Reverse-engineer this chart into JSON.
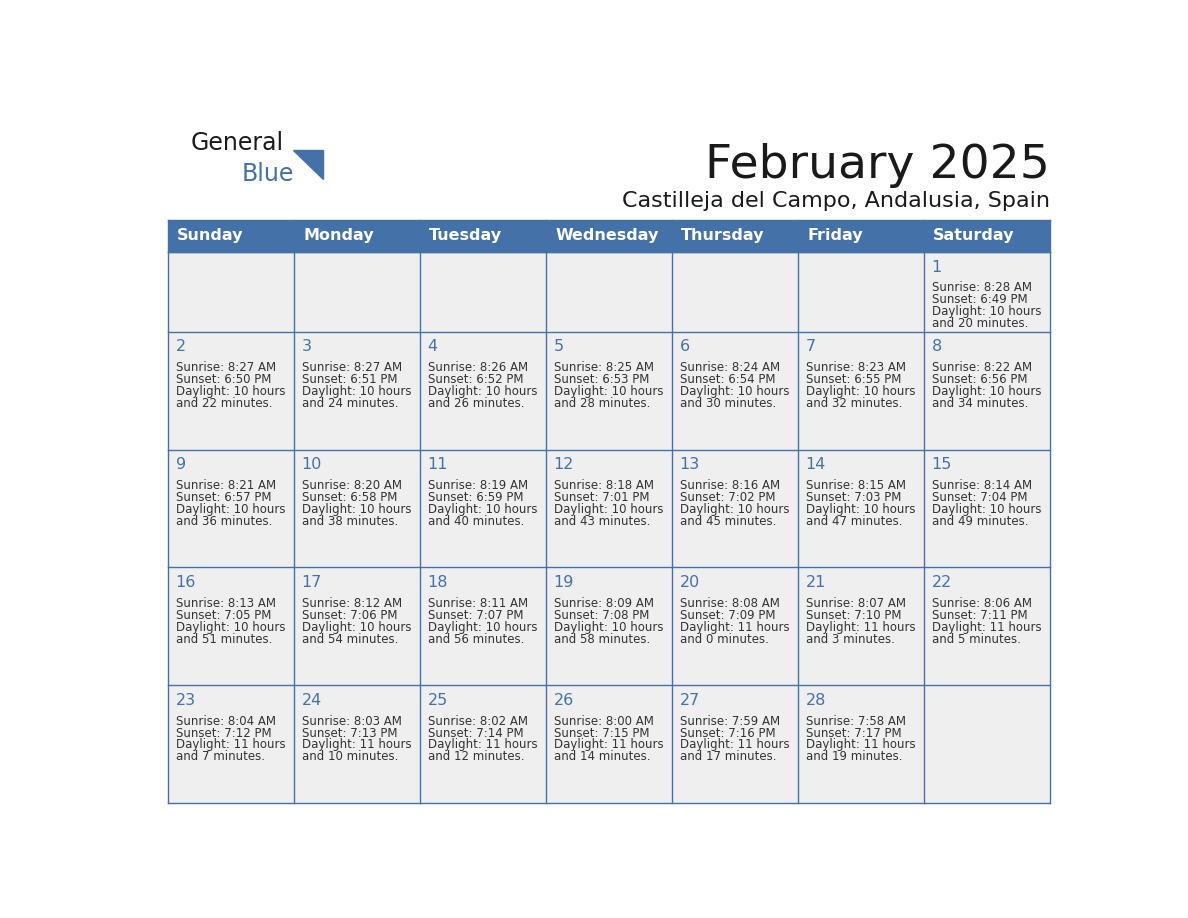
{
  "title": "February 2025",
  "subtitle": "Castilleja del Campo, Andalusia, Spain",
  "header_bg": "#4472a8",
  "header_text": "#ffffff",
  "cell_bg": "#efefef",
  "cell_border": "#4472a8",
  "text_color": "#333333",
  "day_num_color": "#4472a8",
  "day_headers": [
    "Sunday",
    "Monday",
    "Tuesday",
    "Wednesday",
    "Thursday",
    "Friday",
    "Saturday"
  ],
  "days": [
    {
      "day": 1,
      "col": 6,
      "row": 0,
      "sunrise": "8:28 AM",
      "sunset": "6:49 PM",
      "daylight_h": "10 hours",
      "daylight_m": "20 minutes."
    },
    {
      "day": 2,
      "col": 0,
      "row": 1,
      "sunrise": "8:27 AM",
      "sunset": "6:50 PM",
      "daylight_h": "10 hours",
      "daylight_m": "22 minutes."
    },
    {
      "day": 3,
      "col": 1,
      "row": 1,
      "sunrise": "8:27 AM",
      "sunset": "6:51 PM",
      "daylight_h": "10 hours",
      "daylight_m": "24 minutes."
    },
    {
      "day": 4,
      "col": 2,
      "row": 1,
      "sunrise": "8:26 AM",
      "sunset": "6:52 PM",
      "daylight_h": "10 hours",
      "daylight_m": "26 minutes."
    },
    {
      "day": 5,
      "col": 3,
      "row": 1,
      "sunrise": "8:25 AM",
      "sunset": "6:53 PM",
      "daylight_h": "10 hours",
      "daylight_m": "28 minutes."
    },
    {
      "day": 6,
      "col": 4,
      "row": 1,
      "sunrise": "8:24 AM",
      "sunset": "6:54 PM",
      "daylight_h": "10 hours",
      "daylight_m": "30 minutes."
    },
    {
      "day": 7,
      "col": 5,
      "row": 1,
      "sunrise": "8:23 AM",
      "sunset": "6:55 PM",
      "daylight_h": "10 hours",
      "daylight_m": "32 minutes."
    },
    {
      "day": 8,
      "col": 6,
      "row": 1,
      "sunrise": "8:22 AM",
      "sunset": "6:56 PM",
      "daylight_h": "10 hours",
      "daylight_m": "34 minutes."
    },
    {
      "day": 9,
      "col": 0,
      "row": 2,
      "sunrise": "8:21 AM",
      "sunset": "6:57 PM",
      "daylight_h": "10 hours",
      "daylight_m": "36 minutes."
    },
    {
      "day": 10,
      "col": 1,
      "row": 2,
      "sunrise": "8:20 AM",
      "sunset": "6:58 PM",
      "daylight_h": "10 hours",
      "daylight_m": "38 minutes."
    },
    {
      "day": 11,
      "col": 2,
      "row": 2,
      "sunrise": "8:19 AM",
      "sunset": "6:59 PM",
      "daylight_h": "10 hours",
      "daylight_m": "40 minutes."
    },
    {
      "day": 12,
      "col": 3,
      "row": 2,
      "sunrise": "8:18 AM",
      "sunset": "7:01 PM",
      "daylight_h": "10 hours",
      "daylight_m": "43 minutes."
    },
    {
      "day": 13,
      "col": 4,
      "row": 2,
      "sunrise": "8:16 AM",
      "sunset": "7:02 PM",
      "daylight_h": "10 hours",
      "daylight_m": "45 minutes."
    },
    {
      "day": 14,
      "col": 5,
      "row": 2,
      "sunrise": "8:15 AM",
      "sunset": "7:03 PM",
      "daylight_h": "10 hours",
      "daylight_m": "47 minutes."
    },
    {
      "day": 15,
      "col": 6,
      "row": 2,
      "sunrise": "8:14 AM",
      "sunset": "7:04 PM",
      "daylight_h": "10 hours",
      "daylight_m": "49 minutes."
    },
    {
      "day": 16,
      "col": 0,
      "row": 3,
      "sunrise": "8:13 AM",
      "sunset": "7:05 PM",
      "daylight_h": "10 hours",
      "daylight_m": "51 minutes."
    },
    {
      "day": 17,
      "col": 1,
      "row": 3,
      "sunrise": "8:12 AM",
      "sunset": "7:06 PM",
      "daylight_h": "10 hours",
      "daylight_m": "54 minutes."
    },
    {
      "day": 18,
      "col": 2,
      "row": 3,
      "sunrise": "8:11 AM",
      "sunset": "7:07 PM",
      "daylight_h": "10 hours",
      "daylight_m": "56 minutes."
    },
    {
      "day": 19,
      "col": 3,
      "row": 3,
      "sunrise": "8:09 AM",
      "sunset": "7:08 PM",
      "daylight_h": "10 hours",
      "daylight_m": "58 minutes."
    },
    {
      "day": 20,
      "col": 4,
      "row": 3,
      "sunrise": "8:08 AM",
      "sunset": "7:09 PM",
      "daylight_h": "11 hours",
      "daylight_m": "0 minutes."
    },
    {
      "day": 21,
      "col": 5,
      "row": 3,
      "sunrise": "8:07 AM",
      "sunset": "7:10 PM",
      "daylight_h": "11 hours",
      "daylight_m": "3 minutes."
    },
    {
      "day": 22,
      "col": 6,
      "row": 3,
      "sunrise": "8:06 AM",
      "sunset": "7:11 PM",
      "daylight_h": "11 hours",
      "daylight_m": "5 minutes."
    },
    {
      "day": 23,
      "col": 0,
      "row": 4,
      "sunrise": "8:04 AM",
      "sunset": "7:12 PM",
      "daylight_h": "11 hours",
      "daylight_m": "7 minutes."
    },
    {
      "day": 24,
      "col": 1,
      "row": 4,
      "sunrise": "8:03 AM",
      "sunset": "7:13 PM",
      "daylight_h": "11 hours",
      "daylight_m": "10 minutes."
    },
    {
      "day": 25,
      "col": 2,
      "row": 4,
      "sunrise": "8:02 AM",
      "sunset": "7:14 PM",
      "daylight_h": "11 hours",
      "daylight_m": "12 minutes."
    },
    {
      "day": 26,
      "col": 3,
      "row": 4,
      "sunrise": "8:00 AM",
      "sunset": "7:15 PM",
      "daylight_h": "11 hours",
      "daylight_m": "14 minutes."
    },
    {
      "day": 27,
      "col": 4,
      "row": 4,
      "sunrise": "7:59 AM",
      "sunset": "7:16 PM",
      "daylight_h": "11 hours",
      "daylight_m": "17 minutes."
    },
    {
      "day": 28,
      "col": 5,
      "row": 4,
      "sunrise": "7:58 AM",
      "sunset": "7:17 PM",
      "daylight_h": "11 hours",
      "daylight_m": "19 minutes."
    }
  ]
}
